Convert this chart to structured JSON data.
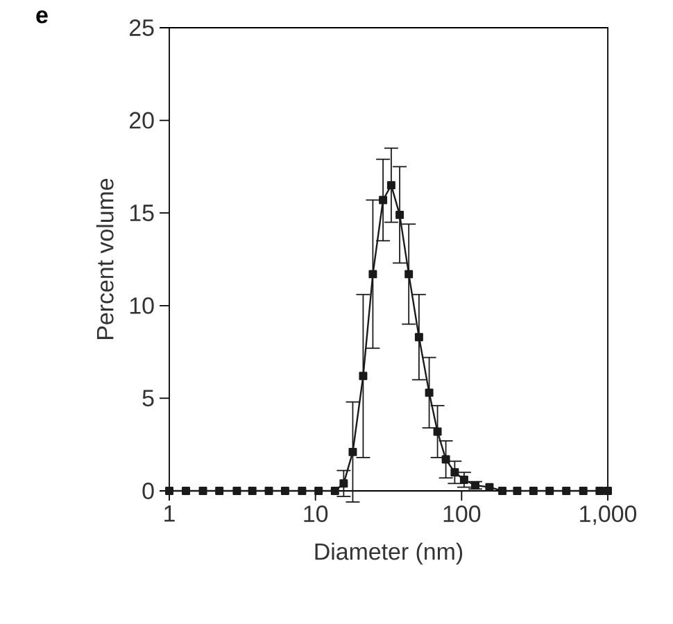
{
  "chart_data": {
    "type": "line",
    "xlabel": "Diameter (nm)",
    "ylabel": "Percent volume",
    "annotations": [
      "e"
    ],
    "log": "x",
    "xlim": [
      1,
      1000
    ],
    "ylim": [
      0,
      25
    ],
    "xticks": [
      1,
      10,
      100,
      {
        "value": 1000,
        "label": "1,000"
      }
    ],
    "yticks": [
      0,
      5,
      10,
      15,
      20,
      25
    ],
    "grid": false,
    "marker": "square",
    "line_style": "solid",
    "series": [
      {
        "color": "#1a1a1a",
        "x": [
          1,
          1.3,
          1.7,
          2.2,
          2.9,
          3.7,
          4.8,
          6.2,
          8.1,
          10.5,
          13.6,
          15.6,
          18.0,
          21.2,
          24.7,
          29.0,
          33.0,
          37.7,
          43.5,
          51.1,
          60.0,
          68.4,
          78.0,
          89.7,
          104,
          124,
          155,
          190,
          240,
          310,
          400,
          520,
          680,
          880,
          1000
        ],
        "values": [
          0,
          0,
          0,
          0,
          0,
          0,
          0,
          0,
          0,
          0,
          0,
          0.4,
          2.1,
          6.2,
          11.7,
          15.7,
          16.5,
          14.9,
          11.7,
          8.3,
          5.3,
          3.2,
          1.7,
          1.0,
          0.6,
          0.3,
          0.2,
          0,
          0,
          0,
          0,
          0,
          0,
          0,
          0
        ],
        "errors": [
          null,
          null,
          null,
          null,
          null,
          null,
          null,
          null,
          null,
          null,
          null,
          0.7,
          2.7,
          4.4,
          4.0,
          2.2,
          2.0,
          2.6,
          2.7,
          2.3,
          1.9,
          1.4,
          1.0,
          0.6,
          0.4,
          0.2,
          null,
          null,
          null,
          null,
          null,
          null,
          null,
          null,
          null
        ]
      }
    ]
  }
}
